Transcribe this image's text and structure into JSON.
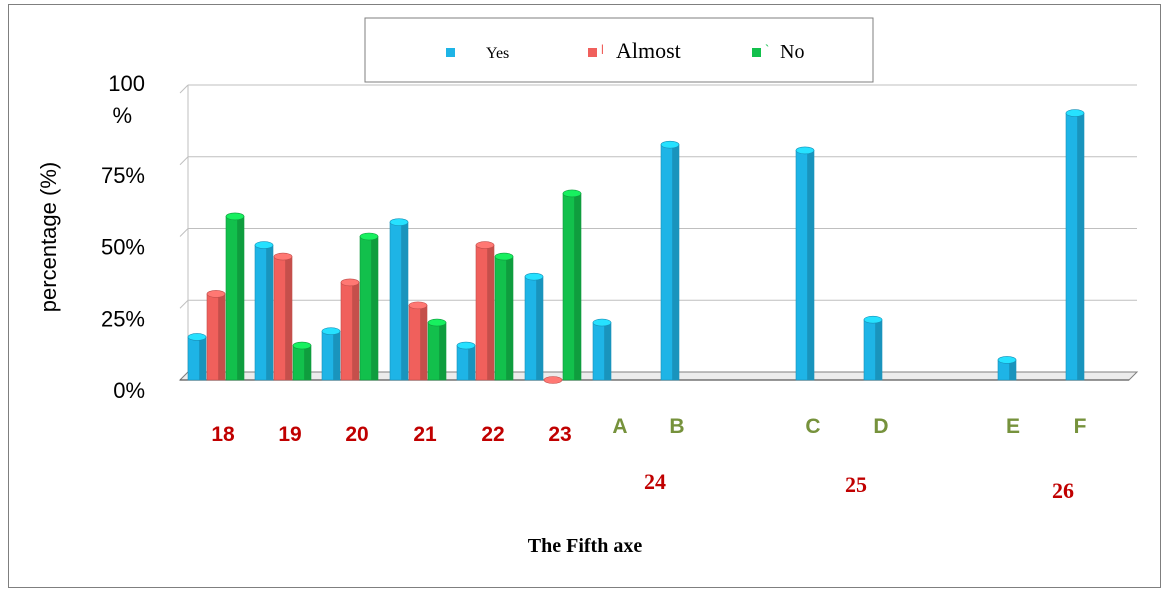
{
  "chart_data": {
    "type": "bar",
    "xlabel": "The Fifth axe",
    "ylabel": "percentage (%)",
    "ylim": [
      0,
      100
    ],
    "yticks": [
      {
        "value": 0,
        "label": "0%"
      },
      {
        "value": 25,
        "label": "25%"
      },
      {
        "value": 50,
        "label": "50%"
      },
      {
        "value": 75,
        "label": "75%"
      },
      {
        "value": 100,
        "label": "100 %"
      }
    ],
    "grid": true,
    "legend_position": "top",
    "series": [
      {
        "name": "Yes",
        "color": "#1eb4e6"
      },
      {
        "name": "Almost",
        "color": "#f0605c",
        "marker": "l"
      },
      {
        "name": "No",
        "color": "#12c04c",
        "marker": "`"
      }
    ],
    "groups": [
      {
        "label": "18",
        "values": [
          15,
          30,
          57
        ]
      },
      {
        "label": "19",
        "values": [
          47,
          43,
          12
        ]
      },
      {
        "label": "20",
        "values": [
          17,
          34,
          50
        ]
      },
      {
        "label": "21",
        "values": [
          55,
          26,
          20
        ]
      },
      {
        "label": "22",
        "values": [
          12,
          47,
          43
        ]
      },
      {
        "label": "23",
        "values": [
          36,
          0,
          65
        ]
      },
      {
        "label": "A",
        "values": [
          20,
          null,
          null
        ]
      },
      {
        "label": "B",
        "values": [
          82,
          null,
          null
        ]
      },
      {
        "label": "C",
        "values": [
          80,
          null,
          null
        ]
      },
      {
        "label": "D",
        "values": [
          21,
          null,
          null
        ]
      },
      {
        "label": "E",
        "values": [
          7,
          null,
          null
        ]
      },
      {
        "label": "F",
        "values": [
          93,
          null,
          null
        ]
      }
    ],
    "group_labels": [
      {
        "label": "24",
        "groups": [
          "A",
          "B"
        ]
      },
      {
        "label": "25",
        "groups": [
          "C",
          "D"
        ]
      },
      {
        "label": "26",
        "groups": [
          "E",
          "F"
        ]
      }
    ],
    "category_label_colors": {
      "numeric": "#c00000",
      "letter": "#76923c"
    }
  }
}
